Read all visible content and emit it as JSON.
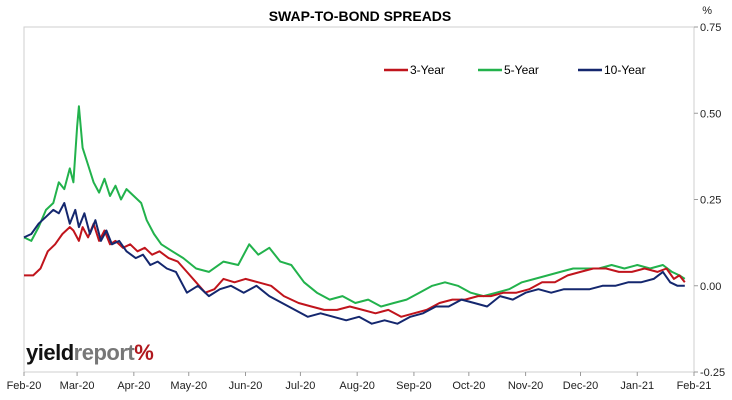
{
  "chart_data": {
    "type": "line",
    "title": "SWAP-TO-BOND SPREADS",
    "y_unit_label": "%",
    "y_axis_position": "right",
    "ylim": [
      -0.25,
      0.75
    ],
    "y_ticks": [
      "0.75",
      "0.50",
      "0.25",
      "0.00",
      "-0.25"
    ],
    "y_tick_values": [
      0.75,
      0.5,
      0.25,
      0.0,
      -0.25
    ],
    "x_ticks": [
      "Feb-20",
      "Mar-20",
      "Apr-20",
      "May-20",
      "Jun-20",
      "Jul-20",
      "Aug-20",
      "Sep-20",
      "Oct-20",
      "Nov-20",
      "Dec-20",
      "Jan-21",
      "Feb-21"
    ],
    "x_tick_dates": [
      "2020-02-01",
      "2020-03-01",
      "2020-04-01",
      "2020-05-01",
      "2020-06-01",
      "2020-07-01",
      "2020-08-01",
      "2020-09-01",
      "2020-10-01",
      "2020-11-01",
      "2020-12-01",
      "2021-01-01",
      "2021-02-01"
    ],
    "xlim": [
      "2020-02-01",
      "2021-02-01"
    ],
    "grid": false,
    "legend_position": "top-right",
    "series": [
      {
        "name": "3-Year",
        "color": "#c0141c",
        "points": [
          [
            "2020-02-01",
            0.03
          ],
          [
            "2020-02-06",
            0.03
          ],
          [
            "2020-02-10",
            0.05
          ],
          [
            "2020-02-14",
            0.1
          ],
          [
            "2020-02-18",
            0.12
          ],
          [
            "2020-02-22",
            0.15
          ],
          [
            "2020-02-26",
            0.17
          ],
          [
            "2020-02-28",
            0.16
          ],
          [
            "2020-03-02",
            0.13
          ],
          [
            "2020-03-04",
            0.17
          ],
          [
            "2020-03-07",
            0.14
          ],
          [
            "2020-03-10",
            0.18
          ],
          [
            "2020-03-13",
            0.13
          ],
          [
            "2020-03-16",
            0.16
          ],
          [
            "2020-03-19",
            0.12
          ],
          [
            "2020-03-22",
            0.13
          ],
          [
            "2020-03-26",
            0.11
          ],
          [
            "2020-03-30",
            0.12
          ],
          [
            "2020-04-03",
            0.1
          ],
          [
            "2020-04-07",
            0.11
          ],
          [
            "2020-04-11",
            0.09
          ],
          [
            "2020-04-15",
            0.1
          ],
          [
            "2020-04-20",
            0.08
          ],
          [
            "2020-04-25",
            0.07
          ],
          [
            "2020-04-30",
            0.04
          ],
          [
            "2020-05-05",
            0.01
          ],
          [
            "2020-05-10",
            -0.02
          ],
          [
            "2020-05-15",
            -0.01
          ],
          [
            "2020-05-20",
            0.02
          ],
          [
            "2020-05-26",
            0.01
          ],
          [
            "2020-06-01",
            0.02
          ],
          [
            "2020-06-08",
            0.01
          ],
          [
            "2020-06-15",
            0.0
          ],
          [
            "2020-06-22",
            -0.03
          ],
          [
            "2020-06-30",
            -0.05
          ],
          [
            "2020-07-07",
            -0.06
          ],
          [
            "2020-07-14",
            -0.07
          ],
          [
            "2020-07-21",
            -0.07
          ],
          [
            "2020-07-28",
            -0.06
          ],
          [
            "2020-08-04",
            -0.07
          ],
          [
            "2020-08-11",
            -0.08
          ],
          [
            "2020-08-18",
            -0.07
          ],
          [
            "2020-08-25",
            -0.09
          ],
          [
            "2020-09-01",
            -0.08
          ],
          [
            "2020-09-08",
            -0.07
          ],
          [
            "2020-09-15",
            -0.05
          ],
          [
            "2020-09-22",
            -0.04
          ],
          [
            "2020-09-29",
            -0.04
          ],
          [
            "2020-10-06",
            -0.03
          ],
          [
            "2020-10-13",
            -0.03
          ],
          [
            "2020-10-20",
            -0.02
          ],
          [
            "2020-10-27",
            -0.02
          ],
          [
            "2020-11-03",
            -0.01
          ],
          [
            "2020-11-10",
            0.01
          ],
          [
            "2020-11-17",
            0.01
          ],
          [
            "2020-11-24",
            0.03
          ],
          [
            "2020-12-01",
            0.04
          ],
          [
            "2020-12-08",
            0.05
          ],
          [
            "2020-12-15",
            0.05
          ],
          [
            "2020-12-22",
            0.04
          ],
          [
            "2020-12-29",
            0.04
          ],
          [
            "2021-01-05",
            0.05
          ],
          [
            "2021-01-12",
            0.04
          ],
          [
            "2021-01-17",
            0.05
          ],
          [
            "2021-01-21",
            0.02
          ],
          [
            "2021-01-24",
            0.03
          ],
          [
            "2021-01-27",
            0.01
          ]
        ]
      },
      {
        "name": "5-Year",
        "color": "#22b24c",
        "points": [
          [
            "2020-02-01",
            0.14
          ],
          [
            "2020-02-05",
            0.13
          ],
          [
            "2020-02-09",
            0.17
          ],
          [
            "2020-02-13",
            0.22
          ],
          [
            "2020-02-17",
            0.24
          ],
          [
            "2020-02-20",
            0.3
          ],
          [
            "2020-02-23",
            0.28
          ],
          [
            "2020-02-26",
            0.34
          ],
          [
            "2020-02-28",
            0.3
          ],
          [
            "2020-03-01",
            0.46
          ],
          [
            "2020-03-02",
            0.52
          ],
          [
            "2020-03-04",
            0.4
          ],
          [
            "2020-03-07",
            0.35
          ],
          [
            "2020-03-10",
            0.3
          ],
          [
            "2020-03-13",
            0.27
          ],
          [
            "2020-03-16",
            0.31
          ],
          [
            "2020-03-19",
            0.26
          ],
          [
            "2020-03-22",
            0.29
          ],
          [
            "2020-03-25",
            0.25
          ],
          [
            "2020-03-28",
            0.28
          ],
          [
            "2020-04-01",
            0.26
          ],
          [
            "2020-04-05",
            0.24
          ],
          [
            "2020-04-08",
            0.19
          ],
          [
            "2020-04-12",
            0.15
          ],
          [
            "2020-04-16",
            0.12
          ],
          [
            "2020-04-22",
            0.1
          ],
          [
            "2020-04-28",
            0.08
          ],
          [
            "2020-05-05",
            0.05
          ],
          [
            "2020-05-12",
            0.04
          ],
          [
            "2020-05-20",
            0.07
          ],
          [
            "2020-05-28",
            0.06
          ],
          [
            "2020-06-03",
            0.12
          ],
          [
            "2020-06-08",
            0.09
          ],
          [
            "2020-06-14",
            0.11
          ],
          [
            "2020-06-20",
            0.07
          ],
          [
            "2020-06-26",
            0.06
          ],
          [
            "2020-07-03",
            0.01
          ],
          [
            "2020-07-10",
            -0.02
          ],
          [
            "2020-07-17",
            -0.04
          ],
          [
            "2020-07-24",
            -0.03
          ],
          [
            "2020-07-31",
            -0.05
          ],
          [
            "2020-08-07",
            -0.04
          ],
          [
            "2020-08-14",
            -0.06
          ],
          [
            "2020-08-21",
            -0.05
          ],
          [
            "2020-08-28",
            -0.04
          ],
          [
            "2020-09-04",
            -0.02
          ],
          [
            "2020-09-11",
            0.0
          ],
          [
            "2020-09-18",
            0.01
          ],
          [
            "2020-09-25",
            0.0
          ],
          [
            "2020-10-02",
            -0.02
          ],
          [
            "2020-10-09",
            -0.03
          ],
          [
            "2020-10-16",
            -0.02
          ],
          [
            "2020-10-23",
            -0.01
          ],
          [
            "2020-10-30",
            0.01
          ],
          [
            "2020-11-06",
            0.02
          ],
          [
            "2020-11-13",
            0.03
          ],
          [
            "2020-11-20",
            0.04
          ],
          [
            "2020-11-27",
            0.05
          ],
          [
            "2020-12-04",
            0.05
          ],
          [
            "2020-12-11",
            0.05
          ],
          [
            "2020-12-18",
            0.06
          ],
          [
            "2020-12-25",
            0.05
          ],
          [
            "2021-01-01",
            0.06
          ],
          [
            "2021-01-08",
            0.05
          ],
          [
            "2021-01-15",
            0.06
          ],
          [
            "2021-01-20",
            0.04
          ],
          [
            "2021-01-24",
            0.03
          ],
          [
            "2021-01-27",
            0.02
          ]
        ]
      },
      {
        "name": "10-Year",
        "color": "#14276e",
        "points": [
          [
            "2020-02-01",
            0.14
          ],
          [
            "2020-02-05",
            0.15
          ],
          [
            "2020-02-09",
            0.18
          ],
          [
            "2020-02-13",
            0.2
          ],
          [
            "2020-02-17",
            0.22
          ],
          [
            "2020-02-20",
            0.21
          ],
          [
            "2020-02-23",
            0.24
          ],
          [
            "2020-02-26",
            0.18
          ],
          [
            "2020-02-29",
            0.22
          ],
          [
            "2020-03-02",
            0.17
          ],
          [
            "2020-03-05",
            0.21
          ],
          [
            "2020-03-08",
            0.15
          ],
          [
            "2020-03-11",
            0.19
          ],
          [
            "2020-03-14",
            0.13
          ],
          [
            "2020-03-17",
            0.16
          ],
          [
            "2020-03-20",
            0.12
          ],
          [
            "2020-03-24",
            0.13
          ],
          [
            "2020-03-28",
            0.1
          ],
          [
            "2020-04-02",
            0.08
          ],
          [
            "2020-04-06",
            0.09
          ],
          [
            "2020-04-10",
            0.06
          ],
          [
            "2020-04-14",
            0.07
          ],
          [
            "2020-04-19",
            0.05
          ],
          [
            "2020-04-24",
            0.04
          ],
          [
            "2020-04-30",
            -0.02
          ],
          [
            "2020-05-06",
            0.0
          ],
          [
            "2020-05-12",
            -0.03
          ],
          [
            "2020-05-18",
            -0.01
          ],
          [
            "2020-05-24",
            0.0
          ],
          [
            "2020-05-31",
            -0.02
          ],
          [
            "2020-06-07",
            0.0
          ],
          [
            "2020-06-14",
            -0.03
          ],
          [
            "2020-06-21",
            -0.05
          ],
          [
            "2020-06-28",
            -0.07
          ],
          [
            "2020-07-05",
            -0.09
          ],
          [
            "2020-07-12",
            -0.08
          ],
          [
            "2020-07-19",
            -0.09
          ],
          [
            "2020-07-26",
            -0.1
          ],
          [
            "2020-08-02",
            -0.09
          ],
          [
            "2020-08-09",
            -0.11
          ],
          [
            "2020-08-16",
            -0.1
          ],
          [
            "2020-08-23",
            -0.11
          ],
          [
            "2020-08-30",
            -0.09
          ],
          [
            "2020-09-06",
            -0.08
          ],
          [
            "2020-09-13",
            -0.06
          ],
          [
            "2020-09-20",
            -0.06
          ],
          [
            "2020-09-27",
            -0.04
          ],
          [
            "2020-10-04",
            -0.05
          ],
          [
            "2020-10-11",
            -0.06
          ],
          [
            "2020-10-18",
            -0.03
          ],
          [
            "2020-10-25",
            -0.04
          ],
          [
            "2020-11-01",
            -0.02
          ],
          [
            "2020-11-08",
            -0.01
          ],
          [
            "2020-11-15",
            -0.02
          ],
          [
            "2020-11-22",
            -0.01
          ],
          [
            "2020-11-29",
            -0.01
          ],
          [
            "2020-12-06",
            -0.01
          ],
          [
            "2020-12-13",
            0.0
          ],
          [
            "2020-12-20",
            0.0
          ],
          [
            "2020-12-27",
            0.01
          ],
          [
            "2021-01-03",
            0.01
          ],
          [
            "2021-01-10",
            0.02
          ],
          [
            "2021-01-15",
            0.04
          ],
          [
            "2021-01-19",
            0.01
          ],
          [
            "2021-01-23",
            0.0
          ],
          [
            "2021-01-27",
            0.0
          ]
        ]
      }
    ]
  },
  "logo": {
    "part1": "yield",
    "part2": "report",
    "symbol": "%"
  }
}
